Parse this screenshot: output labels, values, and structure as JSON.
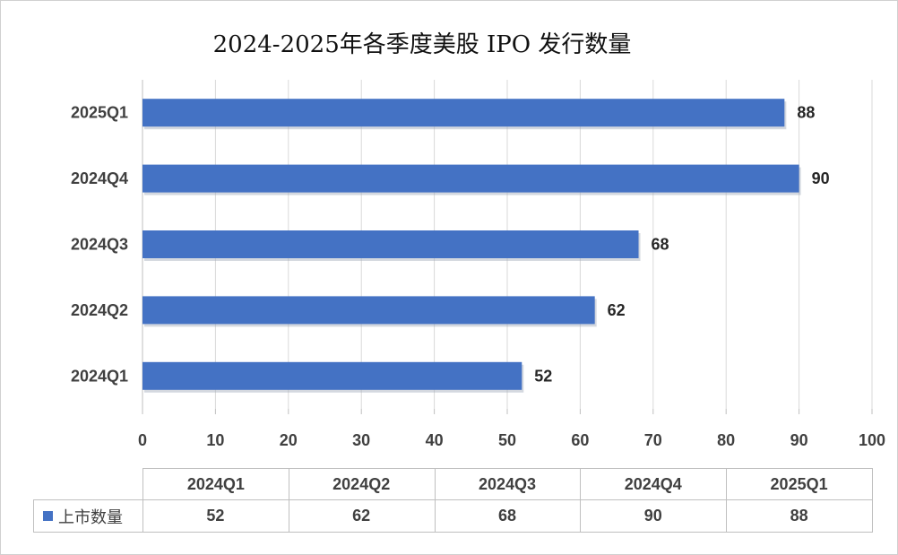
{
  "chart_data": {
    "type": "bar",
    "orientation": "horizontal",
    "title": "2024-2025年各季度美股 IPO 发行数量",
    "categories": [
      "2025Q1",
      "2024Q4",
      "2024Q3",
      "2024Q2",
      "2024Q1"
    ],
    "series": [
      {
        "name": "上市数量",
        "values": [
          88,
          90,
          68,
          62,
          52
        ],
        "color": "#4472c4"
      }
    ],
    "xlim": [
      0,
      100
    ],
    "x_ticks": [
      "0",
      "10",
      "20",
      "30",
      "40",
      "50",
      "60",
      "70",
      "80",
      "90",
      "100"
    ],
    "grid": true,
    "data_labels": true,
    "data_table": {
      "columns": [
        "2024Q1",
        "2024Q2",
        "2024Q3",
        "2024Q4",
        "2025Q1"
      ],
      "row_label": "上市数量",
      "values": [
        "52",
        "62",
        "68",
        "90",
        "88"
      ]
    }
  }
}
